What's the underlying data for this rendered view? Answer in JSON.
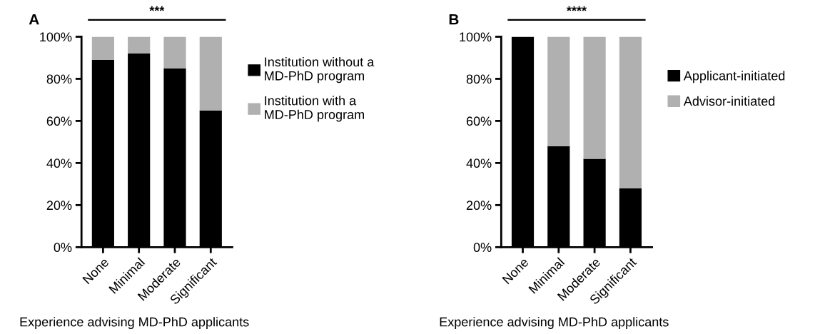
{
  "chart_data": [
    {
      "type": "bar",
      "title": "A",
      "stacked": true,
      "categories": [
        "None",
        "Minimal",
        "Moderate",
        "Significant"
      ],
      "xlabel": "Experience advising MD-PhD applicants",
      "series": [
        {
          "name": "Institution without a\nMD-PhD program",
          "color": "#000000",
          "values": [
            89,
            92,
            85,
            65
          ]
        },
        {
          "name": "Institution with a\nMD-PhD program",
          "color": "#b0b0b0",
          "values": [
            11,
            8,
            15,
            35
          ]
        }
      ],
      "ylim": [
        0,
        100
      ],
      "yticks": [
        {
          "value": 0,
          "label": "0%"
        },
        {
          "value": 20,
          "label": "20%"
        },
        {
          "value": 40,
          "label": "40%"
        },
        {
          "value": 60,
          "label": "60%"
        },
        {
          "value": 80,
          "label": "80%"
        },
        {
          "value": 100,
          "label": "100%"
        }
      ],
      "legend": "right",
      "grid": false,
      "annotations": [
        "***"
      ]
    },
    {
      "type": "bar",
      "title": "B",
      "stacked": true,
      "categories": [
        "None",
        "Minimal",
        "Moderate",
        "Significant"
      ],
      "xlabel": "Experience advising MD-PhD applicants",
      "series": [
        {
          "name": "Applicant-initiated",
          "color": "#000000",
          "values": [
            100,
            48,
            42,
            28
          ]
        },
        {
          "name": "Advisor-initiated",
          "color": "#b0b0b0",
          "values": [
            0,
            52,
            58,
            72
          ]
        }
      ],
      "ylim": [
        0,
        100
      ],
      "yticks": [
        {
          "value": 0,
          "label": "0%"
        },
        {
          "value": 20,
          "label": "20%"
        },
        {
          "value": 40,
          "label": "40%"
        },
        {
          "value": 60,
          "label": "60%"
        },
        {
          "value": 80,
          "label": "80%"
        },
        {
          "value": 100,
          "label": "100%"
        }
      ],
      "legend": "right",
      "grid": false,
      "annotations": [
        "****"
      ]
    }
  ]
}
